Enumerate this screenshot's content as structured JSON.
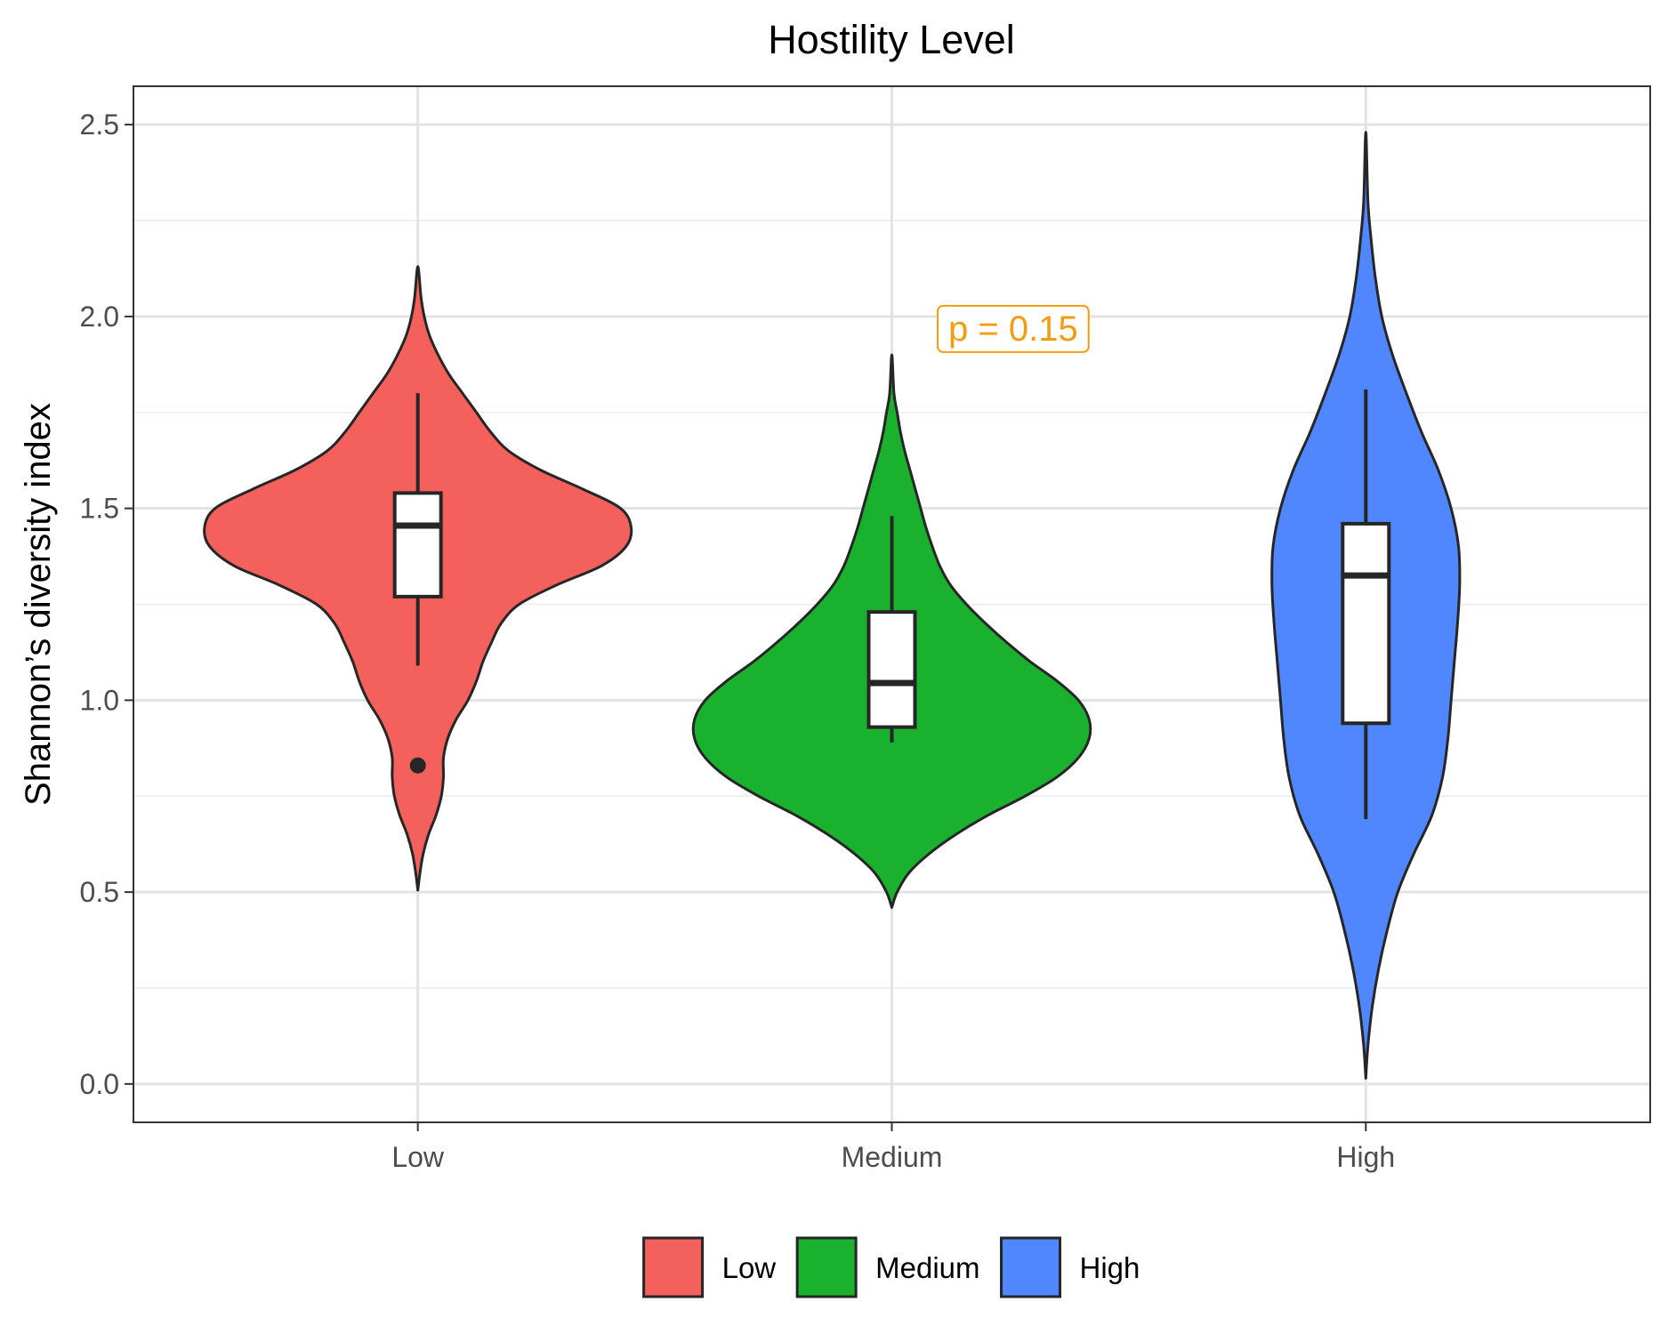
{
  "chart_data": {
    "type": "violin",
    "title": "Hostility Level",
    "xlabel": "",
    "ylabel": "Shannon’s diversity index",
    "categories": [
      "Low",
      "Medium",
      "High"
    ],
    "ylim": [
      -0.1,
      2.6
    ],
    "yticks": [
      0.0,
      0.5,
      1.0,
      1.5,
      2.0,
      2.5
    ],
    "ytick_labels": [
      "0.0",
      "0.5",
      "1.0",
      "1.5",
      "2.0",
      "2.5"
    ],
    "grid": true,
    "legend": {
      "position": "bottom",
      "title": "",
      "entries": [
        "Low",
        "Medium",
        "High"
      ]
    },
    "colors": {
      "Low": "#F4605C",
      "Medium": "#19B12D",
      "High": "#5086FE"
    },
    "annotation": {
      "text": "p = 0.15",
      "color": "#F39C12",
      "x_position": "between Medium and High",
      "y": 1.97
    },
    "groups": [
      {
        "name": "Low",
        "boxplot": {
          "lower_whisker": 1.09,
          "q1": 1.27,
          "median": 1.455,
          "q3": 1.54,
          "upper_whisker": 1.8,
          "outliers": [
            0.83
          ]
        },
        "violin_profile": [
          [
            0.505,
            0.0
          ],
          [
            0.55,
            0.02
          ],
          [
            0.6,
            0.05
          ],
          [
            0.65,
            0.1
          ],
          [
            0.7,
            0.17
          ],
          [
            0.75,
            0.22
          ],
          [
            0.8,
            0.24
          ],
          [
            0.85,
            0.24
          ],
          [
            0.9,
            0.28
          ],
          [
            0.95,
            0.36
          ],
          [
            1.0,
            0.47
          ],
          [
            1.05,
            0.55
          ],
          [
            1.1,
            0.61
          ],
          [
            1.15,
            0.69
          ],
          [
            1.2,
            0.78
          ],
          [
            1.25,
            0.95
          ],
          [
            1.3,
            1.3
          ],
          [
            1.35,
            1.72
          ],
          [
            1.4,
            1.95
          ],
          [
            1.45,
            2.0
          ],
          [
            1.5,
            1.9
          ],
          [
            1.55,
            1.55
          ],
          [
            1.6,
            1.15
          ],
          [
            1.65,
            0.85
          ],
          [
            1.7,
            0.68
          ],
          [
            1.75,
            0.55
          ],
          [
            1.8,
            0.42
          ],
          [
            1.85,
            0.29
          ],
          [
            1.9,
            0.19
          ],
          [
            1.95,
            0.11
          ],
          [
            2.0,
            0.06
          ],
          [
            2.05,
            0.03
          ],
          [
            2.13,
            0.0
          ]
        ]
      },
      {
        "name": "Medium",
        "boxplot": {
          "lower_whisker": 0.89,
          "q1": 0.93,
          "median": 1.045,
          "q3": 1.23,
          "upper_whisker": 1.48,
          "outliers": []
        },
        "violin_profile": [
          [
            0.46,
            0.0
          ],
          [
            0.5,
            0.05
          ],
          [
            0.55,
            0.16
          ],
          [
            0.6,
            0.35
          ],
          [
            0.65,
            0.6
          ],
          [
            0.7,
            0.9
          ],
          [
            0.75,
            1.25
          ],
          [
            0.8,
            1.55
          ],
          [
            0.85,
            1.75
          ],
          [
            0.9,
            1.85
          ],
          [
            0.95,
            1.85
          ],
          [
            1.0,
            1.75
          ],
          [
            1.05,
            1.55
          ],
          [
            1.1,
            1.3
          ],
          [
            1.15,
            1.08
          ],
          [
            1.2,
            0.88
          ],
          [
            1.25,
            0.7
          ],
          [
            1.3,
            0.55
          ],
          [
            1.35,
            0.45
          ],
          [
            1.4,
            0.38
          ],
          [
            1.45,
            0.32
          ],
          [
            1.5,
            0.27
          ],
          [
            1.55,
            0.22
          ],
          [
            1.6,
            0.17
          ],
          [
            1.65,
            0.12
          ],
          [
            1.7,
            0.08
          ],
          [
            1.75,
            0.05
          ],
          [
            1.8,
            0.02
          ],
          [
            1.9,
            0.0
          ]
        ]
      },
      {
        "name": "High",
        "boxplot": {
          "lower_whisker": 0.69,
          "q1": 0.94,
          "median": 1.325,
          "q3": 1.46,
          "upper_whisker": 1.81,
          "outliers": []
        },
        "violin_profile": [
          [
            0.015,
            0.0
          ],
          [
            0.1,
            0.02
          ],
          [
            0.2,
            0.06
          ],
          [
            0.3,
            0.12
          ],
          [
            0.4,
            0.2
          ],
          [
            0.5,
            0.3
          ],
          [
            0.6,
            0.45
          ],
          [
            0.7,
            0.62
          ],
          [
            0.8,
            0.72
          ],
          [
            0.9,
            0.77
          ],
          [
            1.0,
            0.8
          ],
          [
            1.1,
            0.83
          ],
          [
            1.2,
            0.86
          ],
          [
            1.3,
            0.88
          ],
          [
            1.4,
            0.87
          ],
          [
            1.5,
            0.8
          ],
          [
            1.6,
            0.68
          ],
          [
            1.7,
            0.52
          ],
          [
            1.8,
            0.38
          ],
          [
            1.9,
            0.25
          ],
          [
            2.0,
            0.15
          ],
          [
            2.1,
            0.09
          ],
          [
            2.2,
            0.05
          ],
          [
            2.3,
            0.02
          ],
          [
            2.48,
            0.0
          ]
        ]
      }
    ]
  }
}
